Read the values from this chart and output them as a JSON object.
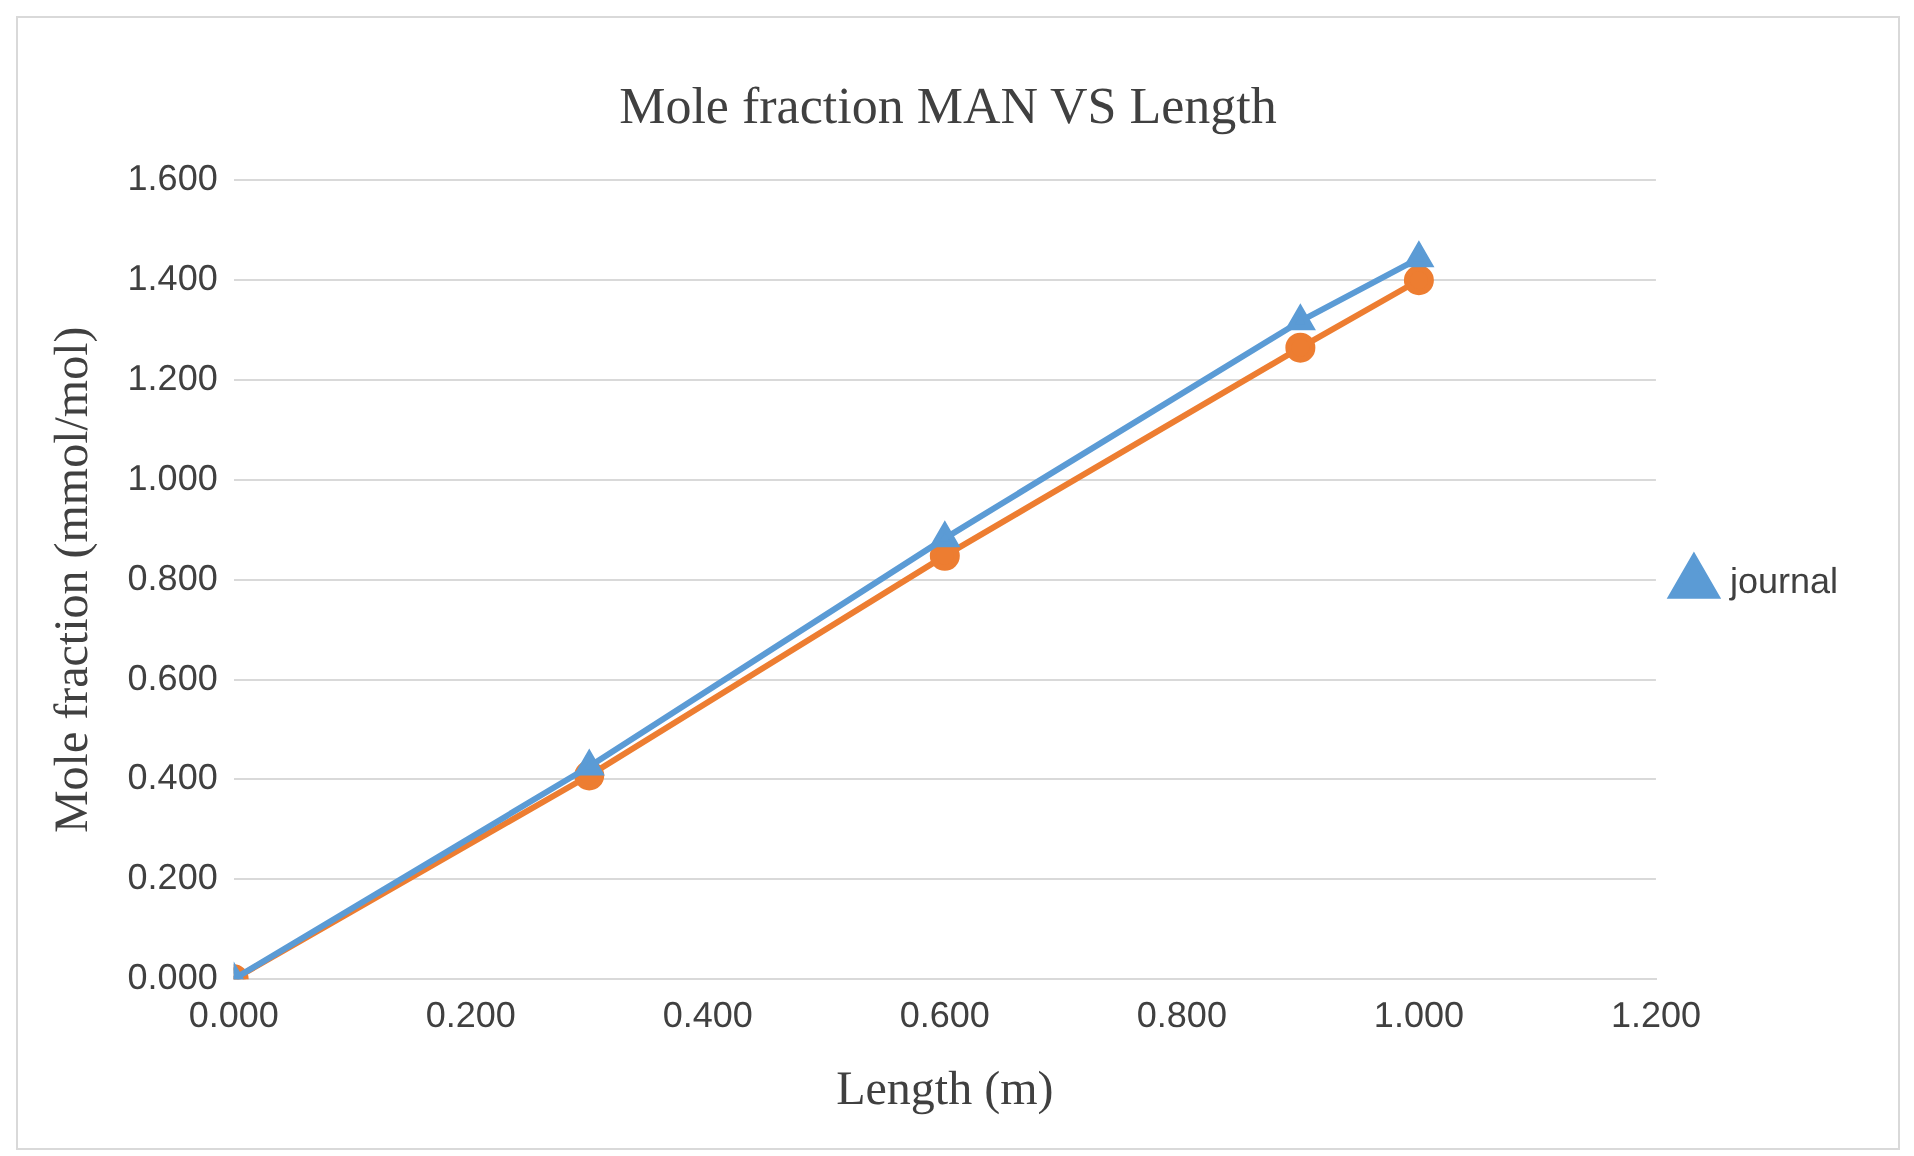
{
  "chart_data": {
    "type": "line",
    "title": "Mole fraction MAN VS Length",
    "xlabel": "Length (m)",
    "ylabel": "Mole fraction (mmol/mol)",
    "x": [
      0,
      0.3,
      0.6,
      0.9,
      1.0
    ],
    "series": [
      {
        "name": "journal",
        "color": "#5b9bd5",
        "marker": "triangle",
        "values": [
          0,
          0.426,
          0.883,
          1.318,
          1.444
        ]
      },
      {
        "color": "#ed7d31",
        "marker": "circle",
        "values": [
          0,
          0.408,
          0.848,
          1.265,
          1.4
        ]
      }
    ],
    "xlim": [
      0,
      1.2
    ],
    "xticks": [
      {
        "value": 0,
        "label": "0.000"
      },
      {
        "value": 0.2,
        "label": "0.200"
      },
      {
        "value": 0.4,
        "label": "0.400"
      },
      {
        "value": 0.6,
        "label": "0.600"
      },
      {
        "value": 0.8,
        "label": "0.800"
      },
      {
        "value": 1.0,
        "label": "1.000"
      },
      {
        "value": 1.2,
        "label": "1.200"
      }
    ],
    "ylim": [
      0,
      1.6
    ],
    "yticks": [
      {
        "value": 0,
        "label": "0.000"
      },
      {
        "value": 0.2,
        "label": "0.200"
      },
      {
        "value": 0.4,
        "label": "0.400"
      },
      {
        "value": 0.6,
        "label": "0.600"
      },
      {
        "value": 0.8,
        "label": "0.800"
      },
      {
        "value": 1.0,
        "label": "1.000"
      },
      {
        "value": 1.2,
        "label": "1.200"
      },
      {
        "value": 1.4,
        "label": "1.400"
      },
      {
        "value": 1.6,
        "label": "1.600"
      }
    ],
    "grid": "y",
    "legend": "right",
    "line_style": "solid"
  }
}
